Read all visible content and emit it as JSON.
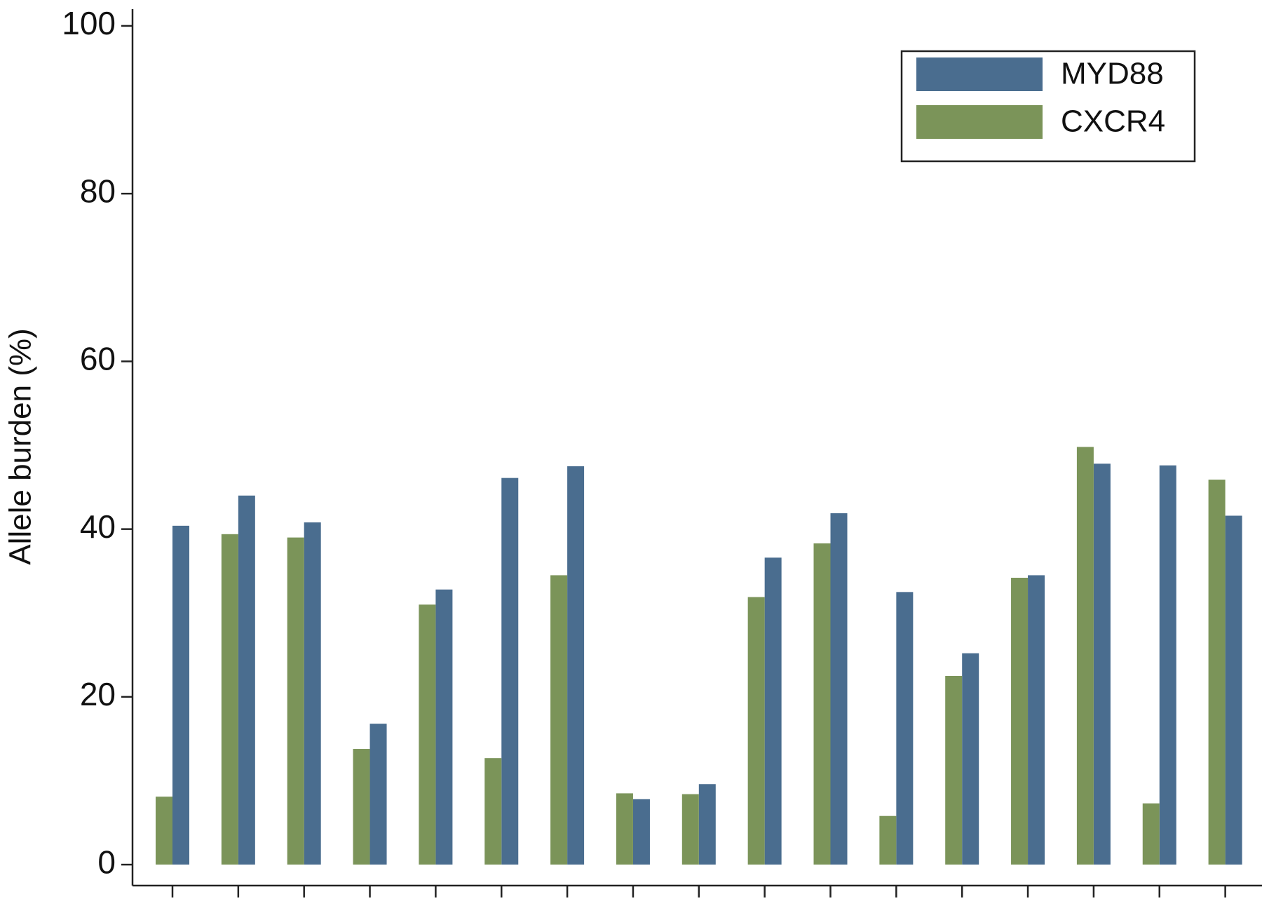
{
  "chart_data": {
    "type": "bar",
    "y_label": "Allele burden (%)",
    "categories": [
      null,
      null,
      null,
      null,
      null,
      null,
      null,
      null,
      null,
      null,
      null,
      null,
      null,
      null,
      null,
      null,
      null
    ],
    "series": [
      {
        "name": "MYD88",
        "color": "#4a6d8f",
        "values": [
          40.4,
          44.0,
          40.8,
          16.8,
          32.8,
          46.1,
          47.5,
          7.8,
          9.6,
          36.6,
          41.9,
          32.5,
          25.2,
          34.5,
          47.8,
          47.6,
          41.6
        ]
      },
      {
        "name": "CXCR4",
        "color": "#7b9459",
        "values": [
          8.1,
          39.4,
          39.0,
          13.8,
          31.0,
          12.7,
          34.5,
          8.5,
          8.4,
          31.9,
          38.3,
          5.8,
          22.5,
          34.2,
          49.8,
          7.3,
          45.9
        ]
      }
    ],
    "ylim": [
      -2.5,
      102
    ],
    "yticks": [
      0,
      20,
      40,
      60,
      80,
      100
    ],
    "grid": false,
    "legend_position": "upper right"
  }
}
